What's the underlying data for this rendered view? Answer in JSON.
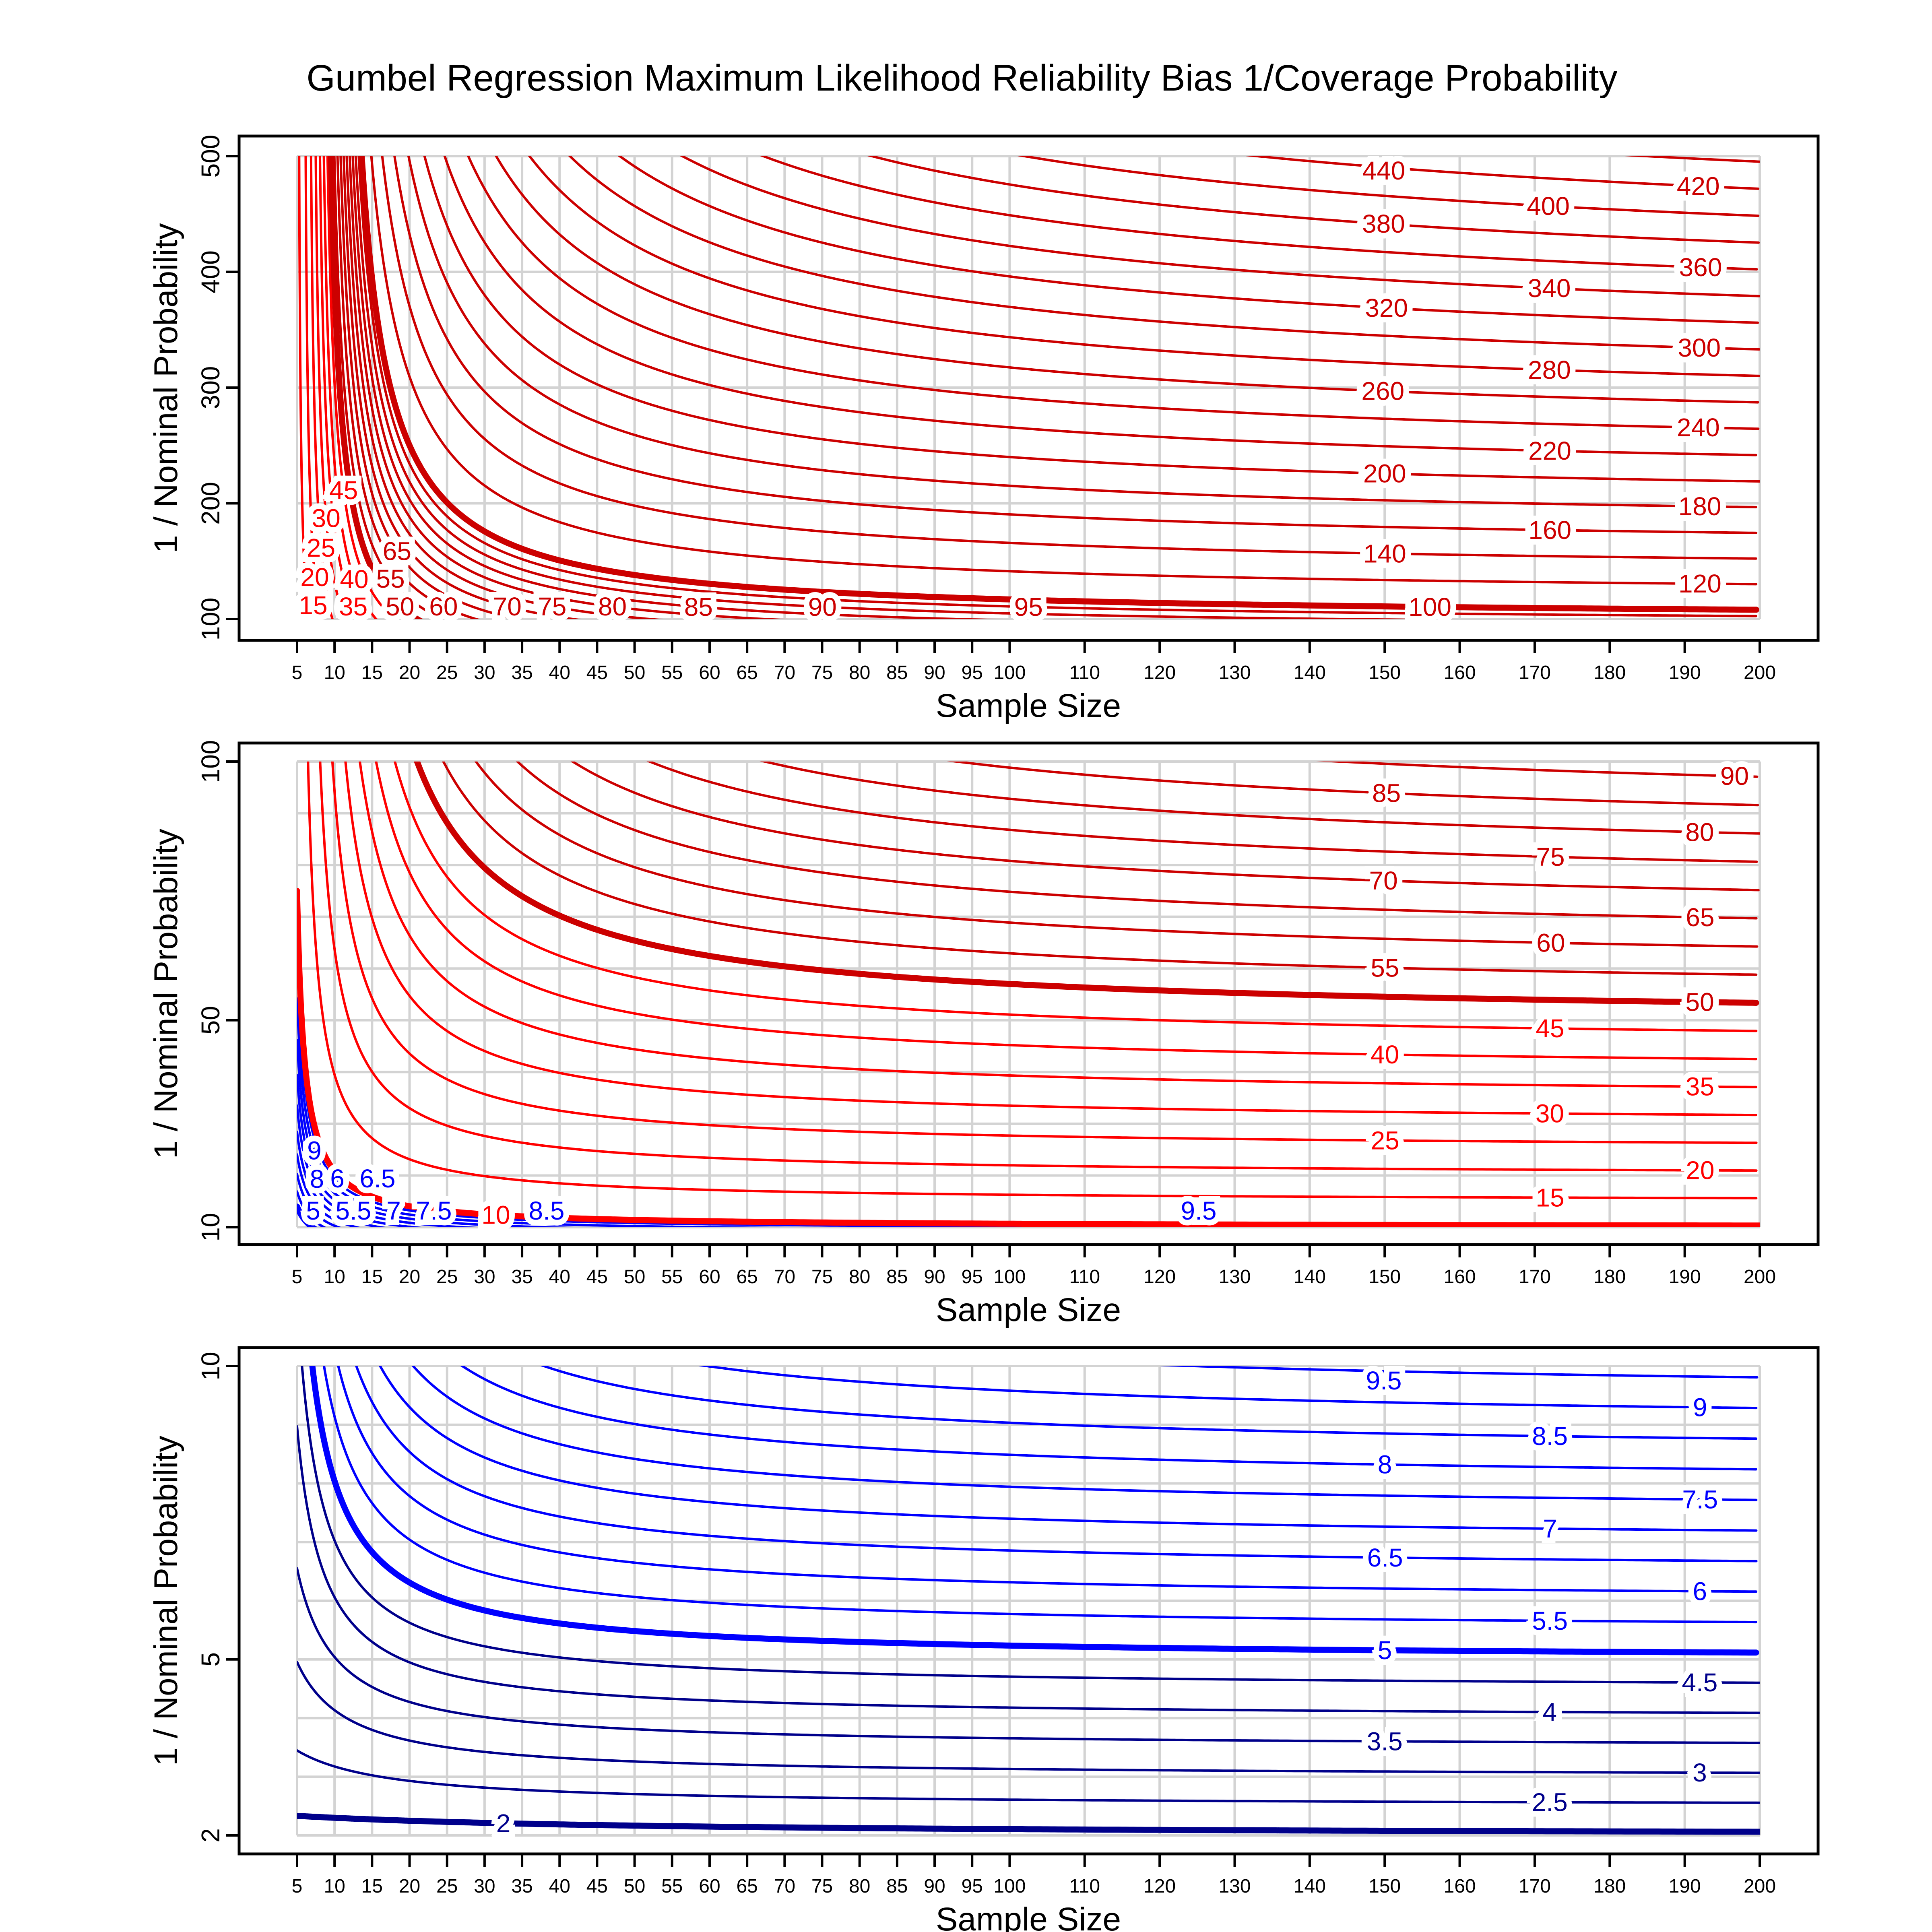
{
  "title": "Gumbel Regression Maximum Likelihood Reliability Bias 1/Coverage Probability",
  "colors": {
    "red_low": "#ff0000",
    "red_high": "#cc0000",
    "blue_high": "#0000ff",
    "blue_low": "#00008b",
    "grid": "#d3d3d3",
    "axis": "#000000"
  },
  "chart_data": [
    {
      "type": "contour",
      "xlabel": "Sample Size",
      "ylabel": "1 / Nominal Probability",
      "xlim": [
        5,
        200
      ],
      "ylim": [
        100,
        500
      ],
      "xticks": [
        5,
        10,
        15,
        20,
        25,
        30,
        35,
        40,
        45,
        50,
        55,
        60,
        65,
        70,
        75,
        80,
        85,
        90,
        95,
        100,
        110,
        120,
        130,
        140,
        150,
        160,
        170,
        180,
        190,
        200
      ],
      "yticks": [
        100,
        200,
        300,
        400,
        500
      ],
      "ygrid_step": 100,
      "grid": true,
      "levels": [
        15,
        20,
        25,
        30,
        35,
        40,
        45,
        50,
        55,
        60,
        65,
        70,
        75,
        80,
        85,
        90,
        95,
        100,
        120,
        140,
        160,
        180,
        200,
        220,
        240,
        260,
        280,
        300,
        320,
        340,
        360,
        380,
        400,
        420,
        440
      ],
      "thick_levels": [
        50,
        100
      ]
    },
    {
      "type": "contour",
      "xlabel": "Sample Size",
      "ylabel": "1 / Nominal Probability",
      "xlim": [
        5,
        200
      ],
      "ylim": [
        10,
        100
      ],
      "xticks": [
        5,
        10,
        15,
        20,
        25,
        30,
        35,
        40,
        45,
        50,
        55,
        60,
        65,
        70,
        75,
        80,
        85,
        90,
        95,
        100,
        110,
        120,
        130,
        140,
        150,
        160,
        170,
        180,
        190,
        200
      ],
      "yticks": [
        10,
        50,
        100
      ],
      "ygrid_step": 10,
      "grid": true,
      "levels": [
        5,
        5.5,
        6,
        6.5,
        7,
        7.5,
        8,
        8.5,
        9,
        9.5,
        10,
        15,
        20,
        25,
        30,
        35,
        40,
        45,
        50,
        55,
        60,
        65,
        70,
        75,
        80,
        85,
        90
      ],
      "thick_levels": [
        5,
        10,
        50
      ]
    },
    {
      "type": "contour",
      "xlabel": "Sample Size",
      "ylabel": "1 / Nominal Probability",
      "xlim": [
        5,
        200
      ],
      "ylim": [
        2,
        10
      ],
      "xticks": [
        5,
        10,
        15,
        20,
        25,
        30,
        35,
        40,
        45,
        50,
        55,
        60,
        65,
        70,
        75,
        80,
        85,
        90,
        95,
        100,
        110,
        120,
        130,
        140,
        150,
        160,
        170,
        180,
        190,
        200
      ],
      "yticks": [
        2,
        5,
        10
      ],
      "ygrid_step": 1,
      "grid": true,
      "levels": [
        2,
        2.5,
        3,
        3.5,
        4,
        4.5,
        5,
        5.5,
        6,
        6.5,
        7,
        7.5,
        8,
        8.5,
        9,
        9.5
      ],
      "thick_levels": [
        2,
        5
      ]
    }
  ]
}
